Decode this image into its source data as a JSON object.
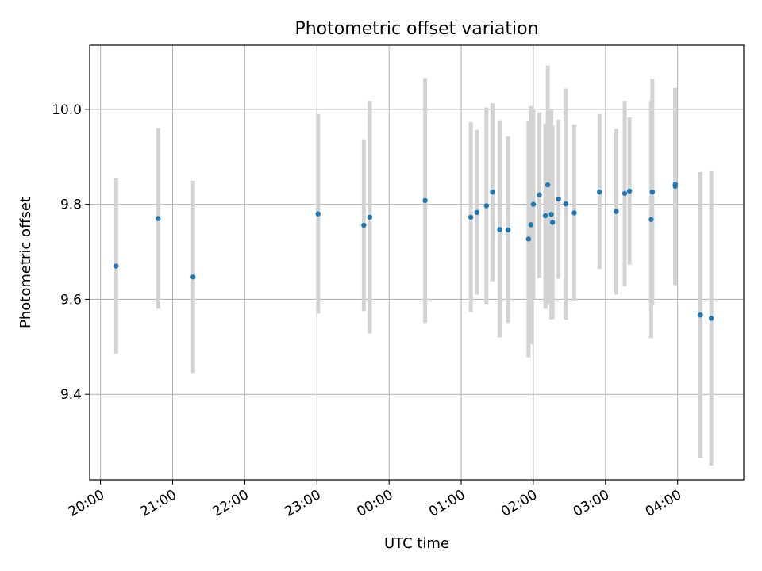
{
  "chart_data": {
    "type": "scatter",
    "title": "Photometric offset variation",
    "xlabel": "UTC time",
    "ylabel": "Photometric offset",
    "x_tick_labels": [
      "20:00",
      "21:00",
      "22:00",
      "23:00",
      "00:00",
      "01:00",
      "02:00",
      "03:00",
      "04:00"
    ],
    "y_tick_labels": [
      "9.4",
      "9.6",
      "9.8",
      "10.0"
    ],
    "y_ticks": [
      9.4,
      9.6,
      9.8,
      10.0
    ],
    "xlim": [
      "19:51",
      "04:55"
    ],
    "ylim": [
      9.22,
      10.135
    ],
    "grid": true,
    "point_color": "#1f77b4",
    "errorbar_color": "#d3d3d3",
    "points": [
      {
        "x": "20:13",
        "y": 9.67,
        "lo": 9.485,
        "hi": 9.855
      },
      {
        "x": "20:48",
        "y": 9.77,
        "lo": 9.58,
        "hi": 9.96
      },
      {
        "x": "21:17",
        "y": 9.647,
        "lo": 9.445,
        "hi": 9.85
      },
      {
        "x": "23:01",
        "y": 9.78,
        "lo": 9.57,
        "hi": 9.99
      },
      {
        "x": "23:39",
        "y": 9.756,
        "lo": 9.575,
        "hi": 9.937
      },
      {
        "x": "23:44",
        "y": 9.773,
        "lo": 9.528,
        "hi": 10.018
      },
      {
        "x": "00:30",
        "y": 9.808,
        "lo": 9.55,
        "hi": 10.066
      },
      {
        "x": "01:08",
        "y": 9.773,
        "lo": 9.573,
        "hi": 9.973
      },
      {
        "x": "01:13",
        "y": 9.783,
        "lo": 9.61,
        "hi": 9.957
      },
      {
        "x": "01:21",
        "y": 9.797,
        "lo": 9.59,
        "hi": 10.004
      },
      {
        "x": "01:26",
        "y": 9.826,
        "lo": 9.638,
        "hi": 10.013
      },
      {
        "x": "01:32",
        "y": 9.747,
        "lo": 9.52,
        "hi": 9.977
      },
      {
        "x": "01:39",
        "y": 9.746,
        "lo": 9.55,
        "hi": 9.943
      },
      {
        "x": "01:56",
        "y": 9.727,
        "lo": 9.478,
        "hi": 9.976
      },
      {
        "x": "01:58",
        "y": 9.757,
        "lo": 9.505,
        "hi": 10.007
      },
      {
        "x": "02:00",
        "y": 9.8,
        "lo": 9.6,
        "hi": 10.0
      },
      {
        "x": "02:05",
        "y": 9.82,
        "lo": 9.645,
        "hi": 9.994
      },
      {
        "x": "02:10",
        "y": 9.776,
        "lo": 9.58,
        "hi": 9.97
      },
      {
        "x": "02:12",
        "y": 9.841,
        "lo": 9.59,
        "hi": 10.092
      },
      {
        "x": "02:15",
        "y": 9.779,
        "lo": 9.558,
        "hi": 10.0
      },
      {
        "x": "02:16",
        "y": 9.762,
        "lo": 9.558,
        "hi": 9.966
      },
      {
        "x": "02:21",
        "y": 9.811,
        "lo": 9.643,
        "hi": 9.978
      },
      {
        "x": "02:27",
        "y": 9.801,
        "lo": 9.557,
        "hi": 10.044
      },
      {
        "x": "02:34",
        "y": 9.782,
        "lo": 9.597,
        "hi": 9.968
      },
      {
        "x": "02:55",
        "y": 9.826,
        "lo": 9.664,
        "hi": 9.99
      },
      {
        "x": "03:09",
        "y": 9.785,
        "lo": 9.61,
        "hi": 9.958
      },
      {
        "x": "03:16",
        "y": 9.823,
        "lo": 9.627,
        "hi": 10.018
      },
      {
        "x": "03:20",
        "y": 9.828,
        "lo": 9.673,
        "hi": 9.983
      },
      {
        "x": "03:38",
        "y": 9.768,
        "lo": 9.518,
        "hi": 10.018
      },
      {
        "x": "03:39",
        "y": 9.826,
        "lo": 9.588,
        "hi": 10.064
      },
      {
        "x": "03:58",
        "y": 9.838,
        "lo": 9.63,
        "hi": 10.045
      },
      {
        "x": "03:58",
        "y": 9.842,
        "lo": 9.64,
        "hi": 10.044
      },
      {
        "x": "04:19",
        "y": 9.567,
        "lo": 9.266,
        "hi": 9.868
      },
      {
        "x": "04:28",
        "y": 9.56,
        "lo": 9.25,
        "hi": 9.87
      }
    ]
  }
}
